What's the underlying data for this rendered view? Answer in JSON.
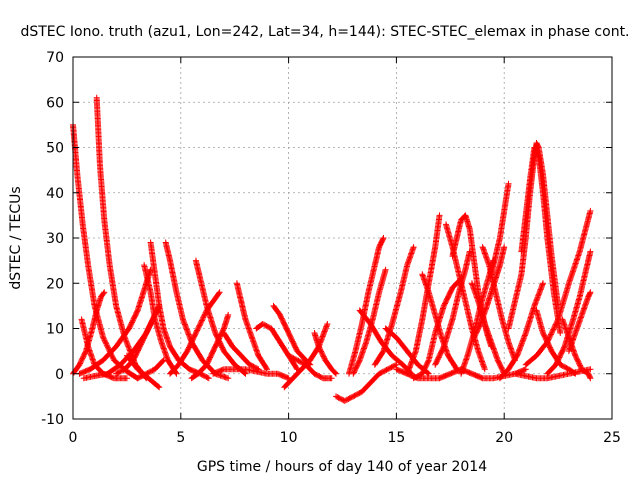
{
  "chart_data": {
    "type": "scatter",
    "title": "dSTEC Iono. truth (azu1, Lon=242, Lat=34, h=144): STEC-STEC_elemax in phase cont.",
    "xlabel": "GPS time / hours of day 140 of year 2014",
    "ylabel": "dSTEC  / TECUs",
    "xlim": [
      0,
      25
    ],
    "ylim": [
      -10,
      70
    ],
    "xticks": [
      "0",
      "5",
      "10",
      "15",
      "20",
      "25"
    ],
    "yticks": [
      "-10",
      "0",
      "10",
      "20",
      "30",
      "40",
      "50",
      "60",
      "70"
    ],
    "grid": true,
    "marker": "+",
    "series_color": "#ff0000",
    "arcs": [
      {
        "x": [
          0.0,
          0.2,
          0.45,
          0.7,
          1.0,
          1.4,
          1.9,
          2.5,
          3.0
        ],
        "y": [
          55,
          44,
          33,
          24,
          15,
          8,
          3,
          0.5,
          -1
        ]
      },
      {
        "x": [
          1.1,
          1.25,
          1.45,
          1.7,
          2.0,
          2.4,
          2.9,
          3.4
        ],
        "y": [
          61,
          46,
          34,
          24,
          15,
          8,
          2,
          -1
        ]
      },
      {
        "x": [
          0.0,
          0.3,
          0.6,
          0.9,
          1.1,
          1.3,
          1.45
        ],
        "y": [
          0,
          2,
          5,
          10,
          14,
          17,
          18
        ]
      },
      {
        "x": [
          0.4,
          0.7,
          1.0,
          1.4,
          1.9,
          2.5
        ],
        "y": [
          12,
          6,
          2,
          0,
          -1,
          -1
        ]
      },
      {
        "x": [
          0.3,
          0.8,
          1.4,
          2.0,
          2.6,
          3.0,
          3.4,
          3.6
        ],
        "y": [
          0,
          1,
          3,
          6,
          10,
          14,
          20,
          23
        ]
      },
      {
        "x": [
          0.5,
          1.0,
          1.6,
          2.2,
          2.8,
          3.4,
          4.0
        ],
        "y": [
          -1,
          -0.5,
          0,
          2,
          5,
          9,
          15
        ]
      },
      {
        "x": [
          3.6,
          3.8,
          4.0,
          4.2,
          4.5,
          4.9,
          5.4,
          5.9,
          6.3
        ],
        "y": [
          29,
          22,
          15,
          10,
          6,
          3,
          1,
          0,
          -1
        ]
      },
      {
        "x": [
          3.3,
          3.6,
          3.8,
          4.1,
          4.4,
          4.8
        ],
        "y": [
          24,
          18,
          12,
          7,
          3,
          0
        ]
      },
      {
        "x": [
          2.0,
          2.4,
          2.8,
          3.2,
          3.6,
          4.0
        ],
        "y": [
          0,
          1,
          3,
          7,
          11,
          15
        ]
      },
      {
        "x": [
          2.5,
          3.0,
          3.5,
          4.0
        ],
        "y": [
          4,
          1,
          -1,
          -3
        ]
      },
      {
        "x": [
          3.0,
          3.4,
          3.8,
          4.2
        ],
        "y": [
          -1,
          0,
          1,
          3
        ]
      },
      {
        "x": [
          4.3,
          4.5,
          4.8,
          5.1,
          5.5,
          6.0,
          6.6,
          7.2
        ],
        "y": [
          29,
          25,
          18,
          12,
          7,
          3,
          0,
          -1
        ]
      },
      {
        "x": [
          4.5,
          4.9,
          5.3,
          5.7,
          6.2,
          6.8
        ],
        "y": [
          0,
          2,
          5,
          9,
          14,
          18
        ]
      },
      {
        "x": [
          5.7,
          5.9,
          6.2,
          6.6,
          7.0,
          7.5,
          8.0
        ],
        "y": [
          25,
          21,
          15,
          9,
          5,
          2,
          0
        ]
      },
      {
        "x": [
          5.5,
          5.8,
          6.2,
          6.6,
          7.0,
          7.2
        ],
        "y": [
          -1,
          0,
          2,
          6,
          10,
          13
        ]
      },
      {
        "x": [
          7.6,
          7.8,
          8.0,
          8.3,
          8.6,
          9.0
        ],
        "y": [
          20,
          16,
          12,
          8,
          4,
          1
        ]
      },
      {
        "x": [
          7.0,
          7.4,
          7.8,
          8.2,
          8.6
        ],
        "y": [
          9,
          6,
          4,
          2,
          1
        ]
      },
      {
        "x": [
          6.5,
          7.0,
          7.5,
          8.0,
          8.5,
          9.0,
          9.5,
          10.0
        ],
        "y": [
          0,
          1,
          1,
          1,
          0.5,
          0,
          0,
          -1
        ]
      },
      {
        "x": [
          8.5,
          8.8,
          9.2,
          9.6,
          10.0,
          10.4
        ],
        "y": [
          10,
          11,
          10,
          7,
          4,
          1
        ]
      },
      {
        "x": [
          9.3,
          9.6,
          10.0,
          10.4,
          10.8,
          11.0
        ],
        "y": [
          15,
          13,
          9,
          5,
          3,
          2
        ]
      },
      {
        "x": [
          9.8,
          10.2,
          10.6,
          11.0,
          11.4,
          11.8
        ],
        "y": [
          -3,
          -1,
          1,
          3,
          6,
          11
        ]
      },
      {
        "x": [
          10.0,
          10.4,
          10.8,
          11.2,
          11.6,
          12.0
        ],
        "y": [
          4,
          3,
          2,
          0,
          -1,
          -1
        ]
      },
      {
        "x": [
          11.2,
          11.4,
          11.7,
          12.0,
          12.2
        ],
        "y": [
          9,
          6,
          3,
          1,
          0
        ]
      },
      {
        "x": [
          12.2,
          12.6,
          13.0,
          13.4,
          13.8,
          14.2,
          14.6,
          15.0
        ],
        "y": [
          -5,
          -6,
          -5,
          -4,
          -2,
          0,
          1,
          2
        ]
      },
      {
        "x": [
          12.8,
          13.1,
          13.4,
          13.7,
          14.0,
          14.2,
          14.4
        ],
        "y": [
          0,
          5,
          11,
          18,
          24,
          28,
          30
        ]
      },
      {
        "x": [
          13.0,
          13.3,
          13.6,
          13.9,
          14.2,
          14.5
        ],
        "y": [
          0,
          3,
          7,
          12,
          18,
          23
        ]
      },
      {
        "x": [
          14.0,
          14.4,
          14.8,
          15.2,
          15.5,
          15.8
        ],
        "y": [
          2,
          5,
          11,
          18,
          24,
          28
        ]
      },
      {
        "x": [
          13.3,
          13.8,
          14.3,
          14.8,
          15.3,
          15.7
        ],
        "y": [
          14,
          11,
          7,
          4,
          2,
          0
        ]
      },
      {
        "x": [
          14.5,
          15.0,
          15.5,
          16.0,
          16.5
        ],
        "y": [
          10,
          8,
          5,
          2,
          0
        ]
      },
      {
        "x": [
          15.5,
          15.9,
          16.2,
          16.5,
          16.8,
          17.0
        ],
        "y": [
          0,
          5,
          12,
          20,
          28,
          35
        ]
      },
      {
        "x": [
          15.8,
          16.2,
          16.5,
          16.8,
          17.2,
          17.6,
          18.0
        ],
        "y": [
          -1,
          0,
          3,
          9,
          15,
          19,
          21
        ]
      },
      {
        "x": [
          16.2,
          16.5,
          16.8,
          17.1,
          17.4,
          17.8
        ],
        "y": [
          22,
          18,
          13,
          8,
          4,
          1
        ]
      },
      {
        "x": [
          16.8,
          17.2,
          17.6,
          17.9,
          18.2,
          18.4
        ],
        "y": [
          2,
          6,
          12,
          18,
          23,
          27
        ]
      },
      {
        "x": [
          17.3,
          17.6,
          17.9,
          18.2,
          18.5,
          18.8,
          19.1
        ],
        "y": [
          33,
          28,
          22,
          16,
          10,
          5,
          1
        ]
      },
      {
        "x": [
          17.6,
          17.8,
          18.0,
          18.2,
          18.4,
          18.6,
          18.8,
          19.0,
          19.2,
          19.4
        ],
        "y": [
          26,
          30,
          34,
          35,
          32,
          25,
          18,
          13,
          9,
          6
        ]
      },
      {
        "x": [
          18.0,
          18.3,
          18.6,
          18.9,
          19.2,
          19.5
        ],
        "y": [
          0,
          4,
          9,
          15,
          20,
          25
        ]
      },
      {
        "x": [
          18.5,
          18.8,
          19.1,
          19.4,
          19.7,
          20.0
        ],
        "y": [
          20,
          16,
          11,
          7,
          3,
          0
        ]
      },
      {
        "x": [
          18.6,
          18.9,
          19.2,
          19.4,
          19.6,
          19.8,
          20.0
        ],
        "y": [
          8,
          11,
          15,
          18,
          21,
          24,
          28
        ]
      },
      {
        "x": [
          19.4,
          19.6,
          19.8,
          20.0,
          20.2
        ],
        "y": [
          22,
          26,
          30,
          36,
          42
        ]
      },
      {
        "x": [
          19.0,
          19.3,
          19.6,
          19.9,
          20.2,
          20.5
        ],
        "y": [
          28,
          24,
          18,
          12,
          7,
          3
        ]
      },
      {
        "x": [
          19.8,
          20.2,
          20.6,
          21.0,
          21.4,
          21.8
        ],
        "y": [
          -1,
          1,
          4,
          9,
          15,
          20
        ]
      },
      {
        "x": [
          20.2,
          20.5,
          20.8,
          21.0,
          21.2,
          21.4,
          21.5,
          21.6,
          21.8,
          22.0,
          22.2,
          22.5
        ],
        "y": [
          10,
          16,
          22,
          30,
          40,
          48,
          51,
          50,
          44,
          35,
          26,
          15
        ]
      },
      {
        "x": [
          20.8,
          21.0,
          21.2,
          21.4,
          21.6,
          21.8,
          22.0,
          22.3,
          22.6
        ],
        "y": [
          27,
          35,
          43,
          50,
          48,
          40,
          30,
          18,
          9
        ]
      },
      {
        "x": [
          21.5,
          21.8,
          22.2,
          22.6,
          23.0,
          23.3
        ],
        "y": [
          14,
          9,
          5,
          2,
          1,
          0
        ]
      },
      {
        "x": [
          21.0,
          21.5,
          22.0,
          22.5,
          23.0,
          23.5,
          24.0
        ],
        "y": [
          2,
          4,
          7,
          12,
          20,
          27,
          36
        ]
      },
      {
        "x": [
          22.0,
          22.4,
          22.8,
          23.2,
          23.5,
          23.8,
          24.0
        ],
        "y": [
          0,
          2,
          6,
          12,
          17,
          23,
          27
        ]
      },
      {
        "x": [
          22.7,
          23.0,
          23.3,
          23.6,
          23.9,
          24.0
        ],
        "y": [
          12,
          8,
          4,
          1,
          0,
          -1
        ]
      },
      {
        "x": [
          23.0,
          23.3,
          23.6,
          23.9,
          24.0
        ],
        "y": [
          5,
          9,
          13,
          17,
          18
        ]
      },
      {
        "x": [
          20.5,
          21.0,
          21.5,
          22.0,
          22.5,
          23.0,
          23.5,
          24.0
        ],
        "y": [
          0,
          -0.5,
          -1,
          -1,
          -0.5,
          0,
          0.5,
          1
        ]
      },
      {
        "x": [
          18.0,
          18.5,
          19.0,
          19.5,
          20.0,
          20.5,
          21.0
        ],
        "y": [
          1,
          0,
          -1,
          -1,
          -0.5,
          0,
          1
        ]
      },
      {
        "x": [
          15.0,
          15.5,
          16.0,
          16.5,
          17.0,
          17.5,
          18.0
        ],
        "y": [
          1,
          0,
          -1,
          -1,
          -1,
          0,
          1
        ]
      }
    ]
  }
}
